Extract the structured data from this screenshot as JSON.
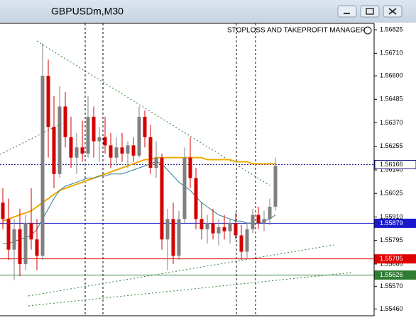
{
  "chart_data": {
    "type": "candlestick",
    "title": "GBPUSDm,M30",
    "annotation": "STOPLOSS AND TAKEPROFIT MANAGER",
    "ylim": [
      1.55427,
      1.56853
    ],
    "yticks": [
      1.56825,
      {
        "value": 1.5671,
        "label": "1.56710"
      },
      {
        "value": 1.566,
        "label": "1.56600"
      },
      1.56485,
      {
        "value": 1.5637,
        "label": "1.56370"
      },
      1.56255,
      {
        "value": 1.5614,
        "label": "1.56140"
      },
      1.56025,
      {
        "value": 1.5591,
        "label": "1.55910"
      },
      1.55795,
      {
        "value": 1.5568,
        "label": "1.55680"
      },
      {
        "value": 1.5557,
        "label": "1.55570"
      },
      {
        "value": 1.5546,
        "label": "1.55460"
      }
    ],
    "up_color": "#808080",
    "down_color": "#d40000",
    "candles": [
      [
        1.5598,
        1.5605,
        1.5585,
        1.559
      ],
      [
        1.559,
        1.56,
        1.557,
        1.5575
      ],
      [
        1.5575,
        1.559,
        1.556,
        1.5585
      ],
      [
        1.5585,
        1.5595,
        1.5562,
        1.5568
      ],
      [
        1.5568,
        1.5592,
        1.5565,
        1.5588
      ],
      [
        1.5588,
        1.5605,
        1.5575,
        1.558
      ],
      [
        1.558,
        1.559,
        1.5565,
        1.5572
      ],
      [
        1.5572,
        1.5676,
        1.557,
        1.566
      ],
      [
        1.566,
        1.5668,
        1.562,
        1.5635
      ],
      [
        1.5635,
        1.565,
        1.5605,
        1.5612
      ],
      [
        1.5612,
        1.5655,
        1.561,
        1.5645
      ],
      [
        1.5645,
        1.5652,
        1.5625,
        1.563
      ],
      [
        1.563,
        1.564,
        1.5615,
        1.562
      ],
      [
        1.562,
        1.5632,
        1.5612,
        1.5625
      ],
      [
        1.5625,
        1.5638,
        1.5618,
        1.5622
      ],
      [
        1.5622,
        1.565,
        1.562,
        1.564
      ],
      [
        1.564,
        1.5645,
        1.562,
        1.5628
      ],
      [
        1.5628,
        1.5635,
        1.5618,
        1.563
      ],
      [
        1.563,
        1.564,
        1.5622,
        1.5626
      ],
      [
        1.5626,
        1.5632,
        1.5615,
        1.562
      ],
      [
        1.562,
        1.563,
        1.5616,
        1.5625
      ],
      [
        1.5625,
        1.5632,
        1.5618,
        1.5622
      ],
      [
        1.5622,
        1.5628,
        1.5615,
        1.5626
      ],
      [
        1.5626,
        1.563,
        1.5618,
        1.5621
      ],
      [
        1.5621,
        1.5645,
        1.562,
        1.564
      ],
      [
        1.564,
        1.5643,
        1.5625,
        1.563
      ],
      [
        1.563,
        1.5636,
        1.5612,
        1.5615
      ],
      [
        1.5615,
        1.5628,
        1.561,
        1.562
      ],
      [
        1.562,
        1.5622,
        1.5575,
        1.558
      ],
      [
        1.558,
        1.5595,
        1.5565,
        1.559
      ],
      [
        1.559,
        1.5598,
        1.5568,
        1.5572
      ],
      [
        1.5572,
        1.5594,
        1.557,
        1.559
      ],
      [
        1.559,
        1.5625,
        1.5588,
        1.562
      ],
      [
        1.562,
        1.563,
        1.5605,
        1.561
      ],
      [
        1.561,
        1.5615,
        1.5585,
        1.559
      ],
      [
        1.559,
        1.5598,
        1.558,
        1.5585
      ],
      [
        1.5585,
        1.5592,
        1.5578,
        1.5588
      ],
      [
        1.5588,
        1.5595,
        1.558,
        1.5583
      ],
      [
        1.5583,
        1.559,
        1.5577,
        1.5586
      ],
      [
        1.5586,
        1.5592,
        1.558,
        1.5584
      ],
      [
        1.5584,
        1.559,
        1.5578,
        1.5588
      ],
      [
        1.5588,
        1.5593,
        1.558,
        1.5582
      ],
      [
        1.5582,
        1.5587,
        1.557,
        1.5574
      ],
      [
        1.5574,
        1.5588,
        1.5571,
        1.5585
      ],
      [
        1.5585,
        1.5595,
        1.5583,
        1.5592
      ],
      [
        1.5592,
        1.5596,
        1.5585,
        1.5588
      ],
      [
        1.5588,
        1.5594,
        1.5584,
        1.559
      ],
      [
        1.559,
        1.56,
        1.5587,
        1.5596
      ],
      [
        1.5596,
        1.562,
        1.5594,
        1.5616
      ]
    ],
    "series": [
      {
        "color": "#f0a800",
        "values": [
          1.5589,
          1.559,
          1.5591,
          1.5592,
          1.5593,
          1.5594,
          1.5596,
          1.5598,
          1.56,
          1.5602,
          1.5604,
          1.5605,
          1.5606,
          1.5607,
          1.5608,
          1.5609,
          1.561,
          1.5611,
          1.5612,
          1.5613,
          1.5614,
          1.5615,
          1.5616,
          1.5617,
          1.5618,
          1.5619,
          1.5619,
          1.562,
          1.562,
          1.562,
          1.562,
          1.562,
          1.562,
          1.562,
          1.562,
          1.562,
          1.5619,
          1.5619,
          1.5619,
          1.5619,
          1.5619,
          1.5618,
          1.5618,
          1.5618,
          1.5617,
          1.5617,
          1.5617,
          1.5617,
          1.5617
        ]
      },
      {
        "color": "#2f7f8f",
        "values": [
          1.5578,
          1.5578,
          1.5579,
          1.558,
          1.5581,
          1.5582,
          1.5585,
          1.559,
          1.5595,
          1.56,
          1.5604,
          1.5606,
          1.5607,
          1.5608,
          1.5609,
          1.561,
          1.561,
          1.5611,
          1.5611,
          1.5612,
          1.5612,
          1.5612,
          1.5613,
          1.5614,
          1.5615,
          1.5616,
          1.5617,
          1.5618,
          1.5617,
          1.5614,
          1.5611,
          1.5608,
          1.5606,
          1.5604,
          1.5601,
          1.5598,
          1.5596,
          1.5594,
          1.5592,
          1.5591,
          1.559,
          1.5589,
          1.5589,
          1.5588,
          1.5588,
          1.5588,
          1.5589,
          1.559,
          1.5592
        ]
      }
    ],
    "price_lines": [
      {
        "value": 1.56166,
        "color": "#1a1a8c",
        "style": "dotted"
      },
      {
        "value": 1.55879,
        "color": "#1a1acc",
        "style": "solid"
      },
      {
        "value": 1.55705,
        "color": "#e00000",
        "style": "solid"
      },
      {
        "value": 1.55626,
        "color": "#2e7d32",
        "style": "solid"
      }
    ]
  }
}
